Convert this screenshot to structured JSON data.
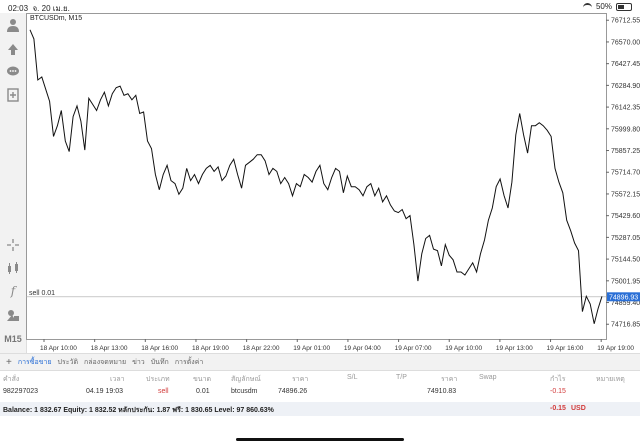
{
  "status": {
    "time": "02:03",
    "date": "จ. 20 เม.ย.",
    "battery": "50%"
  },
  "toolbar": {
    "icons": [
      "account-icon",
      "trade-icon",
      "chat-icon",
      "new-order-icon",
      "crosshair-icon",
      "indicator-icon",
      "function-icon",
      "objects-icon"
    ],
    "timeframe": "M15"
  },
  "chart": {
    "symbol_label": "BTCUSDm, M15",
    "order_line_label": "sell 0.01",
    "current_price": "74896.93"
  },
  "chart_data": {
    "type": "line",
    "title": "BTCUSDm, M15",
    "ylim": [
      74620,
      76760
    ],
    "yticks": [
      "76712.55",
      "76570.00",
      "76427.45",
      "76284.90",
      "76142.35",
      "75999.80",
      "75857.25",
      "75714.70",
      "75572.15",
      "75429.60",
      "75287.05",
      "75144.50",
      "75001.95",
      "74859.40",
      "74716.85"
    ],
    "xticks": [
      "18 Apr 10:00",
      "18 Apr 13:00",
      "18 Apr 16:00",
      "18 Apr 19:00",
      "18 Apr 22:00",
      "19 Apr 01:00",
      "19 Apr 04:00",
      "19 Apr 07:00",
      "19 Apr 10:00",
      "19 Apr 13:00",
      "19 Apr 16:00",
      "19 Apr 19:00"
    ],
    "series": [
      {
        "values": [
          76650,
          76590,
          76320,
          76340,
          76260,
          76180,
          75950,
          76020,
          76120,
          75920,
          75850,
          76080,
          76150,
          76050,
          75860,
          76200,
          76160,
          76120,
          76190,
          76240,
          76150,
          76230,
          76270,
          76280,
          76220,
          76230,
          76190,
          76220,
          76100,
          76110,
          75920,
          75870,
          75700,
          75600,
          75700,
          75760,
          75660,
          75640,
          75570,
          75610,
          75740,
          75660,
          75700,
          75640,
          75700,
          75740,
          75760,
          75720,
          75750,
          75660,
          75690,
          75760,
          75800,
          75700,
          75610,
          75760,
          75780,
          75800,
          75830,
          75830,
          75790,
          75700,
          75740,
          75720,
          75640,
          75680,
          75640,
          75560,
          75640,
          75620,
          75700,
          75680,
          75650,
          75720,
          75760,
          75640,
          75600,
          75680,
          75740,
          75720,
          75580,
          75690,
          75620,
          75620,
          75600,
          75560,
          75620,
          75640,
          75560,
          75610,
          75520,
          75560,
          75500,
          75460,
          75450,
          75470,
          75410,
          75430,
          75240,
          75000,
          75180,
          75280,
          75300,
          75210,
          75200,
          75100,
          75240,
          75170,
          75140,
          75060,
          75060,
          75040,
          75080,
          75120,
          75060,
          75180,
          75270,
          75400,
          75480,
          75620,
          75670,
          75560,
          75480,
          75650,
          75960,
          76100,
          75960,
          75840,
          76020,
          76020,
          76040,
          76020,
          75990,
          75950,
          75740,
          75650,
          75580,
          75400,
          75330,
          75250,
          75200,
          74800,
          74900,
          74850,
          74720,
          74820,
          74900
        ]
      }
    ]
  },
  "tabs": [
    {
      "label": "การซื้อขาย",
      "active": true
    },
    {
      "label": "ประวัติ"
    },
    {
      "label": "กล่องจดหมาย"
    },
    {
      "label": "ข่าว"
    },
    {
      "label": "บันทึก"
    },
    {
      "label": "การตั้งค่า"
    }
  ],
  "table": {
    "headers": [
      "คำสั่ง",
      "เวลา",
      "ประเภท",
      "ขนาด",
      "สัญลักษณ์",
      "ราคา",
      "S/L",
      "T/P",
      "ราคา",
      "Swap",
      "กำไร",
      "หมายเหตุ"
    ],
    "row": {
      "ticket": "982297023",
      "time": "04.19 19:03",
      "type": "sell",
      "size": "0.01",
      "symbol": "btcusdm",
      "open_price": "74896.26",
      "current_price": "74910.83",
      "profit": "-0.15"
    }
  },
  "balance": {
    "text": "Balance: 1 832.67 Equity: 1 832.52 หลักประกัน: 1.87 ฟรี: 1 830.65 Level: 97 860.63%",
    "profit": "-0.15",
    "currency": "USD"
  },
  "colors": {
    "accent": "#2a6fd6",
    "loss": "#d23b3b",
    "price_tag": "#2a6fd6"
  }
}
